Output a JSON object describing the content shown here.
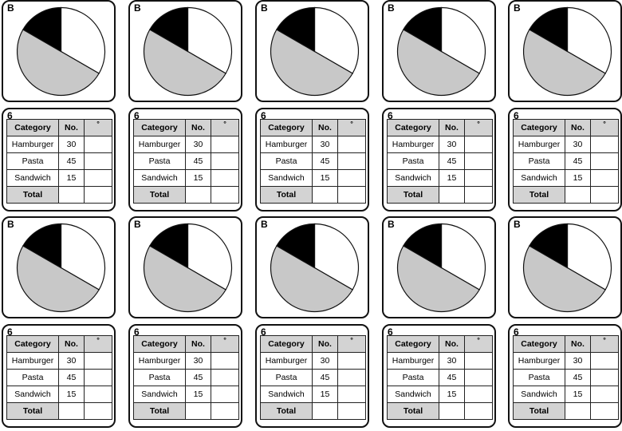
{
  "pie_label": "B",
  "table_label": "6",
  "table": {
    "headers": [
      "Category",
      "No.",
      "°"
    ],
    "rows": [
      {
        "category": "Hamburger",
        "number": "30",
        "degrees": ""
      },
      {
        "category": "Pasta",
        "number": "45",
        "degrees": ""
      },
      {
        "category": "Sandwich",
        "number": "15",
        "degrees": ""
      }
    ],
    "total_label": "Total"
  },
  "chart_data": {
    "type": "pie",
    "slices": [
      {
        "value": 30,
        "color": "#ffffff"
      },
      {
        "value": 45,
        "color": "#c8c8c8"
      },
      {
        "value": 15,
        "color": "#000000"
      }
    ]
  },
  "cards_per_row": 5,
  "rows": 2
}
